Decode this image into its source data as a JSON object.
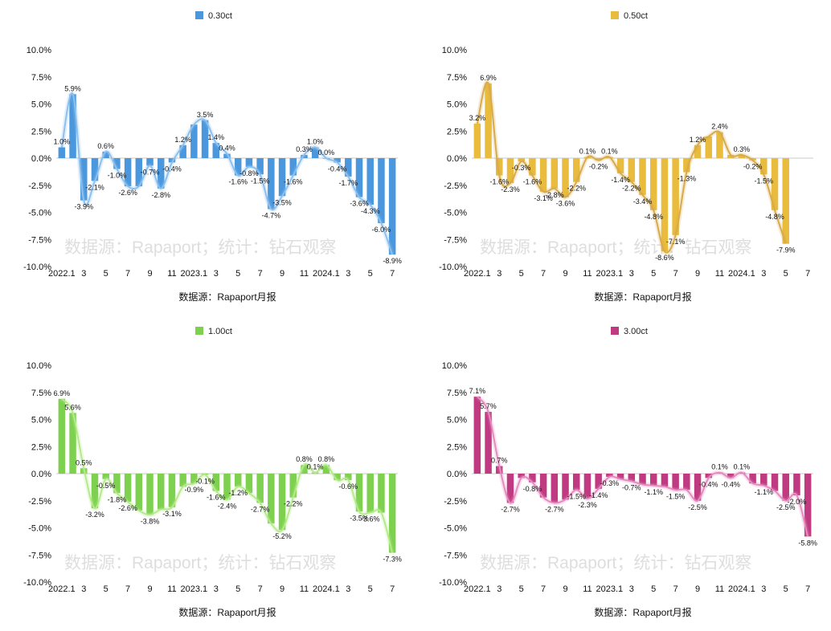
{
  "watermark": "数据源：Rapaport；统计：钻石观察",
  "source_caption": "数据源：Rapaport月报",
  "zero_label": "0.0%",
  "chart_data": [
    {
      "type": "bar",
      "legend": "0.30ct",
      "color": "#4a97dd",
      "line_color": "#8cc0ee",
      "x": [
        "2022.1",
        "2022.2",
        "2022.3",
        "2022.4",
        "2022.5",
        "2022.6",
        "2022.7",
        "2022.8",
        "2022.9",
        "2022.10",
        "2022.11",
        "2022.12",
        "2023.1",
        "2023.2",
        "2023.3",
        "2023.4",
        "2023.5",
        "2023.6",
        "2023.7",
        "2023.8",
        "2023.9",
        "2023.10",
        "2023.11",
        "2023.12",
        "2024.1",
        "2024.2",
        "2024.3",
        "2024.4",
        "2024.5",
        "2024.6",
        "2024.7"
      ],
      "x_ticks": [
        "2022.1",
        "3",
        "5",
        "7",
        "9",
        "11",
        "2023.1",
        "3",
        "5",
        "7",
        "9",
        "11",
        "2024.1",
        "3",
        "5",
        "7"
      ],
      "values": [
        1.0,
        5.9,
        -3.9,
        -2.1,
        0.6,
        -1.0,
        -2.6,
        -2.6,
        -0.7,
        -2.8,
        -0.4,
        1.2,
        3.1,
        3.5,
        1.4,
        0.4,
        -1.6,
        -0.8,
        -1.5,
        -4.7,
        -3.5,
        -1.6,
        0.3,
        1.0,
        0.0,
        -0.4,
        -1.7,
        -3.6,
        -4.3,
        -6.0,
        -8.9
      ],
      "data_labels": [
        "1.0%",
        "5.9%",
        "-3.9%",
        "-2.1%",
        "0.6%",
        "-1.0%",
        "-2.6%",
        "",
        "-0.7%",
        "-2.8%",
        "-0.4%",
        "1.2%",
        "",
        "3.5%",
        "1.4%",
        "0.4%",
        "-1.6%",
        "-0.8%",
        "-1.5%",
        "-4.7%",
        "-3.5%",
        "-1.6%",
        "0.3%",
        "1.0%",
        "0.0%",
        "-0.4%",
        "-1.7%",
        "-3.6%",
        "-4.3%",
        "-6.0%",
        "-8.9%"
      ],
      "trend_line": true,
      "yticks": [
        "10.0%",
        "7.5%",
        "5.0%",
        "2.5%",
        "0.0%",
        "-2.5%",
        "-5.0%",
        "-7.5%",
        "-10.0%"
      ],
      "ylim": [
        -10,
        10
      ]
    },
    {
      "type": "bar",
      "legend": "0.50ct",
      "color": "#e9bc3d",
      "line_color": "#d9aa4a",
      "x": [
        "2022.1",
        "2022.2",
        "2022.3",
        "2022.4",
        "2022.5",
        "2022.6",
        "2022.7",
        "2022.8",
        "2022.9",
        "2022.10",
        "2022.11",
        "2022.12",
        "2023.1",
        "2023.2",
        "2023.3",
        "2023.4",
        "2023.5",
        "2023.6",
        "2023.7",
        "2023.8",
        "2023.9",
        "2023.10",
        "2023.11",
        "2023.12",
        "2024.1",
        "2024.2",
        "2024.3",
        "2024.4",
        "2024.5",
        "2024.6",
        "2024.7"
      ],
      "x_ticks": [
        "2022.1",
        "3",
        "5",
        "7",
        "9",
        "11",
        "2023.1",
        "3",
        "5",
        "7",
        "9",
        "11",
        "2024.1",
        "3",
        "5",
        "7"
      ],
      "values": [
        3.2,
        6.9,
        -1.6,
        -2.3,
        -0.3,
        -1.6,
        -3.1,
        -2.8,
        -3.6,
        -2.2,
        0.1,
        -0.2,
        0.1,
        -1.4,
        -2.2,
        -3.4,
        -4.8,
        -8.6,
        -7.1,
        -1.3,
        1.2,
        2.0,
        2.4,
        0.3,
        0.3,
        -0.2,
        -1.5,
        -4.8,
        -7.9,
        null,
        null
      ],
      "data_labels": [
        "3.2%",
        "6.9%",
        "-1.6%",
        "-2.3%",
        "-0.3%",
        "-1.6%",
        "-3.1%",
        "-2.8%",
        "-3.6%",
        "-2.2%",
        "0.1%",
        "-0.2%",
        "0.1%",
        "-1.4%",
        "-2.2%",
        "-3.4%",
        "-4.8%",
        "-8.6%",
        "-7.1%",
        "-1.3%",
        "1.2%",
        "",
        "2.4%",
        "",
        "0.3%",
        "-0.2%",
        "-1.5%",
        "-4.8%",
        "-7.9%",
        "",
        ""
      ],
      "trend_line": true,
      "yticks": [
        "10.0%",
        "7.5%",
        "5.0%",
        "2.5%",
        "0.0%",
        "-2.5%",
        "-5.0%",
        "-7.5%",
        "-10.0%"
      ],
      "ylim": [
        -10,
        10
      ]
    },
    {
      "type": "bar",
      "legend": "1.00ct",
      "color": "#7ed14e",
      "line_color": "#b5ea8c",
      "x": [
        "2022.1",
        "2022.2",
        "2022.3",
        "2022.4",
        "2022.5",
        "2022.6",
        "2022.7",
        "2022.8",
        "2022.9",
        "2022.10",
        "2022.11",
        "2022.12",
        "2023.1",
        "2023.2",
        "2023.3",
        "2023.4",
        "2023.5",
        "2023.6",
        "2023.7",
        "2023.8",
        "2023.9",
        "2023.10",
        "2023.11",
        "2023.12",
        "2024.1",
        "2024.2",
        "2024.3",
        "2024.4",
        "2024.5",
        "2024.6",
        "2024.7"
      ],
      "x_ticks": [
        "2022.1",
        "3",
        "5",
        "7",
        "9",
        "11",
        "2023.1",
        "3",
        "5",
        "7",
        "9",
        "11",
        "2024.1",
        "3",
        "5",
        "7"
      ],
      "values": [
        6.9,
        5.6,
        0.5,
        -3.2,
        -0.5,
        -1.8,
        -2.6,
        -3.4,
        -3.8,
        -3.3,
        -3.1,
        -1.2,
        -0.9,
        -0.1,
        -1.6,
        -2.4,
        -1.2,
        -1.8,
        -2.7,
        -4.6,
        -5.2,
        -2.2,
        0.8,
        0.1,
        0.8,
        -0.6,
        -0.6,
        -3.5,
        -3.6,
        -3.6,
        -7.3
      ],
      "data_labels": [
        "6.9%",
        "5.6%",
        "0.5%",
        "-3.2%",
        "-0.5%",
        "-1.8%",
        "-2.6%",
        "",
        "-3.8%",
        "",
        "-3.1%",
        "",
        "-0.9%",
        "-0.1%",
        "-1.6%",
        "-2.4%",
        "-1.2%",
        "",
        "-2.7%",
        "",
        "-5.2%",
        "-2.2%",
        "0.8%",
        "0.1%",
        "0.8%",
        "",
        "-0.6%",
        "-3.5%",
        "-3.6%",
        "",
        "-7.3%"
      ],
      "trend_line": true,
      "yticks": [
        "10.0%",
        "7.5%",
        "5.0%",
        "2.5%",
        "0.0%",
        "-2.5%",
        "-5.0%",
        "-7.5%",
        "-10.0%"
      ],
      "ylim": [
        -10,
        10
      ]
    },
    {
      "type": "bar",
      "legend": "3.00ct",
      "color": "#bf3a80",
      "line_color": "#e68bbf",
      "x": [
        "2022.1",
        "2022.2",
        "2022.3",
        "2022.4",
        "2022.5",
        "2022.6",
        "2022.7",
        "2022.8",
        "2022.9",
        "2022.10",
        "2022.11",
        "2022.12",
        "2023.1",
        "2023.2",
        "2023.3",
        "2023.4",
        "2023.5",
        "2023.6",
        "2023.7",
        "2023.8",
        "2023.9",
        "2023.10",
        "2023.11",
        "2023.12",
        "2024.1",
        "2024.2",
        "2024.3",
        "2024.4",
        "2024.5",
        "2024.6",
        "2024.7"
      ],
      "x_ticks": [
        "2022.1",
        "3",
        "5",
        "7",
        "9",
        "11",
        "2023.1",
        "3",
        "5",
        "7",
        "9",
        "11",
        "2024.1",
        "3",
        "5",
        "7"
      ],
      "values": [
        7.1,
        5.7,
        0.7,
        -2.7,
        -0.4,
        -0.8,
        -2.2,
        -2.7,
        -2.4,
        -1.5,
        -2.3,
        -1.4,
        -0.3,
        -0.5,
        -0.7,
        -1.0,
        -1.1,
        -1.2,
        -1.5,
        -1.5,
        -2.5,
        -0.4,
        0.1,
        -0.4,
        0.1,
        -0.9,
        -1.1,
        -1.6,
        -2.5,
        -2.0,
        -5.8
      ],
      "data_labels": [
        "7.1%",
        "5.7%",
        "0.7%",
        "-2.7%",
        "",
        "-0.8%",
        "",
        "-2.7%",
        "",
        "-1.5%",
        "-2.3%",
        "-1.4%",
        "-0.3%",
        "",
        "-0.7%",
        "",
        "-1.1%",
        "",
        "-1.5%",
        "",
        "-2.5%",
        "-0.4%",
        "0.1%",
        "-0.4%",
        "0.1%",
        "",
        "-1.1%",
        "",
        "-2.5%",
        "-2.0%",
        "-5.8%"
      ],
      "trend_line": true,
      "yticks": [
        "10.0%",
        "7.5%",
        "5.0%",
        "2.5%",
        "0.0%",
        "-2.5%",
        "-5.0%",
        "-7.5%",
        "-10.0%"
      ],
      "ylim": [
        -10,
        10
      ]
    }
  ]
}
